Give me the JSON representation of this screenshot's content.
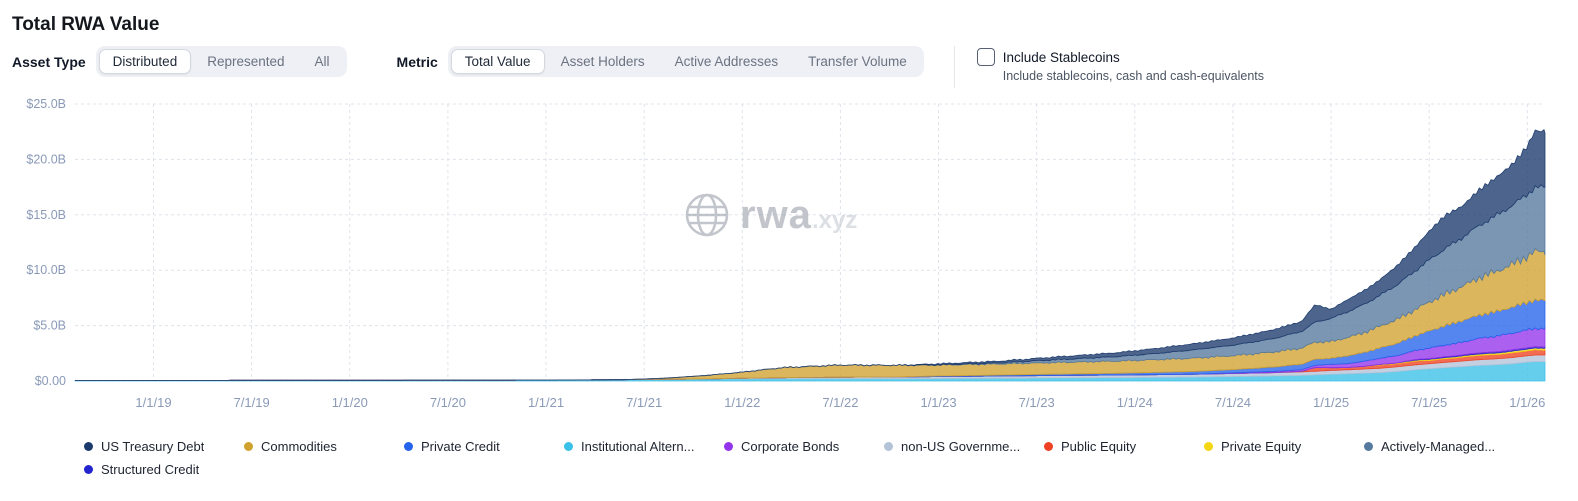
{
  "page": {
    "title": "Total RWA Value"
  },
  "controls": {
    "asset_type": {
      "label": "Asset Type",
      "options": [
        "Distributed",
        "Represented",
        "All"
      ],
      "selected": "Distributed"
    },
    "metric": {
      "label": "Metric",
      "options": [
        "Total Value",
        "Asset Holders",
        "Active Addresses",
        "Transfer Volume"
      ],
      "selected": "Total Value"
    },
    "stablecoins": {
      "label": "Include Stablecoins",
      "description": "Include stablecoins, cash and cash-equivalents",
      "checked": false
    }
  },
  "watermark": {
    "text": "rwa",
    "suffix": ".xyz"
  },
  "chart_data": {
    "type": "area",
    "stacked": true,
    "title": "Total RWA Value",
    "x_unit": "decimal_year",
    "x_range": [
      2018.6,
      2026.09
    ],
    "y_range": [
      0,
      25
    ],
    "grid": true,
    "legend_position": "bottom",
    "y_tick_values": [
      0,
      5,
      10,
      15,
      20,
      25
    ],
    "y_tick_labels": [
      "$0.00",
      "$5.0B",
      "$10.0B",
      "$15.0B",
      "$20.0B",
      "$25.0B"
    ],
    "x_tick_values": [
      2019.0,
      2019.5,
      2020.0,
      2020.5,
      2021.0,
      2021.5,
      2022.0,
      2022.5,
      2023.0,
      2023.5,
      2024.0,
      2024.5,
      2025.0,
      2025.5,
      2026.0
    ],
    "x_tick_labels": [
      "1/1/19",
      "7/1/19",
      "1/1/20",
      "7/1/20",
      "1/1/21",
      "7/1/21",
      "1/1/22",
      "7/1/22",
      "1/1/23",
      "7/1/23",
      "1/1/24",
      "7/1/24",
      "1/1/25",
      "7/1/25",
      "1/1/26"
    ],
    "x": [
      2018.7,
      2019.5,
      2020.5,
      2021.0,
      2021.4,
      2021.6,
      2021.8,
      2022.0,
      2022.2,
      2022.5,
      2022.8,
      2023.0,
      2023.3,
      2023.6,
      2023.9,
      2024.1,
      2024.3,
      2024.5,
      2024.7,
      2024.85,
      2024.92,
      2025.0,
      2025.08,
      2025.17,
      2025.25,
      2025.33,
      2025.42,
      2025.5,
      2025.58,
      2025.67,
      2025.75,
      2025.83,
      2025.92,
      2026.0,
      2026.04
    ],
    "stack_order": [
      3,
      5,
      6,
      7,
      9,
      4,
      2,
      1,
      8,
      0
    ],
    "series": [
      {
        "label": "US Treasury Debt",
        "color": "#1b3a6b",
        "noisy": true,
        "values": [
          0,
          0,
          0,
          0,
          0,
          0,
          0,
          0,
          0,
          0,
          0,
          0.1,
          0.15,
          0.25,
          0.35,
          0.45,
          0.55,
          0.65,
          0.8,
          0.9,
          1.6,
          0.8,
          1.1,
          1.25,
          1.4,
          1.7,
          2.1,
          2.6,
          3.0,
          2.85,
          3.2,
          3.4,
          3.7,
          4.3,
          5.1
        ]
      },
      {
        "label": "Commodities",
        "color": "#d1a12f",
        "noisy": true,
        "values": [
          0,
          0,
          0,
          0,
          0,
          0.1,
          0.3,
          0.55,
          0.9,
          1.1,
          1.05,
          1.0,
          1.0,
          1.05,
          1.1,
          1.15,
          1.2,
          1.25,
          1.35,
          1.45,
          1.55,
          1.5,
          1.65,
          1.8,
          1.95,
          2.15,
          2.35,
          2.6,
          2.85,
          3.1,
          3.35,
          3.6,
          3.85,
          4.15,
          4.4
        ]
      },
      {
        "label": "Private Credit",
        "color": "#2563eb",
        "noisy": true,
        "values": [
          0,
          0,
          0,
          0,
          0,
          0,
          0,
          0,
          0,
          0,
          0,
          0.05,
          0.08,
          0.12,
          0.15,
          0.2,
          0.25,
          0.3,
          0.4,
          0.5,
          0.55,
          0.55,
          0.7,
          0.8,
          0.95,
          1.1,
          1.3,
          1.55,
          1.75,
          1.95,
          2.1,
          2.2,
          2.35,
          2.5,
          2.55
        ]
      },
      {
        "label": "Institutional Altern...",
        "color": "#3bc0e8",
        "noisy": false,
        "values": [
          0.05,
          0.06,
          0.07,
          0.08,
          0.12,
          0.15,
          0.18,
          0.2,
          0.22,
          0.22,
          0.22,
          0.22,
          0.25,
          0.28,
          0.3,
          0.32,
          0.35,
          0.4,
          0.45,
          0.5,
          0.55,
          0.6,
          0.65,
          0.7,
          0.75,
          0.85,
          1.0,
          1.1,
          1.2,
          1.3,
          1.4,
          1.45,
          1.55,
          1.7,
          1.75
        ]
      },
      {
        "label": "Corporate Bonds",
        "color": "#9333ea",
        "noisy": true,
        "values": [
          0,
          0,
          0,
          0,
          0,
          0,
          0,
          0,
          0,
          0,
          0,
          0,
          0,
          0,
          0,
          0,
          0,
          0.05,
          0.1,
          0.15,
          0.2,
          0.3,
          0.35,
          0.45,
          0.55,
          0.65,
          0.8,
          0.95,
          1.05,
          1.15,
          1.3,
          1.4,
          1.5,
          1.6,
          1.65
        ]
      },
      {
        "label": "non-US Governme...",
        "color": "#b4c3d8",
        "noisy": false,
        "values": [
          0,
          0,
          0,
          0,
          0,
          0,
          0,
          0.05,
          0.08,
          0.12,
          0.15,
          0.18,
          0.2,
          0.22,
          0.24,
          0.25,
          0.26,
          0.28,
          0.3,
          0.32,
          0.33,
          0.35,
          0.36,
          0.38,
          0.4,
          0.42,
          0.44,
          0.46,
          0.48,
          0.5,
          0.52,
          0.54,
          0.56,
          0.58,
          0.6
        ]
      },
      {
        "label": "Public Equity",
        "color": "#ee4123",
        "noisy": true,
        "values": [
          0,
          0,
          0,
          0,
          0,
          0,
          0,
          0,
          0,
          0,
          0,
          0,
          0,
          0,
          0,
          0,
          0,
          0,
          0,
          0.05,
          0.35,
          0.25,
          0.2,
          0.25,
          0.3,
          0.28,
          0.35,
          0.3,
          0.32,
          0.35,
          0.4,
          0.38,
          0.42,
          0.45,
          0.45
        ]
      },
      {
        "label": "Private Equity",
        "color": "#f4d612",
        "noisy": false,
        "values": [
          0,
          0,
          0,
          0,
          0,
          0,
          0,
          0,
          0,
          0,
          0,
          0,
          0,
          0,
          0,
          0,
          0,
          0,
          0,
          0,
          0,
          0,
          0,
          0,
          0.05,
          0.06,
          0.08,
          0.1,
          0.1,
          0.12,
          0.12,
          0.14,
          0.15,
          0.16,
          0.16
        ]
      },
      {
        "label": "Actively-Managed...",
        "color": "#56799e",
        "noisy": true,
        "values": [
          0,
          0,
          0,
          0,
          0,
          0,
          0,
          0,
          0,
          0,
          0,
          0,
          0.1,
          0.25,
          0.4,
          0.55,
          0.75,
          0.95,
          1.2,
          1.5,
          1.8,
          2.1,
          2.3,
          2.55,
          2.8,
          3.1,
          3.45,
          3.8,
          4.1,
          4.4,
          4.7,
          5.0,
          5.3,
          5.6,
          5.8
        ]
      },
      {
        "label": "Structured Credit",
        "color": "#2424cf",
        "noisy": false,
        "values": [
          0,
          0,
          0,
          0,
          0,
          0,
          0,
          0,
          0,
          0,
          0,
          0,
          0,
          0,
          0,
          0,
          0,
          0,
          0,
          0,
          0,
          0,
          0,
          0,
          0,
          0,
          0.05,
          0.06,
          0.08,
          0.08,
          0.1,
          0.1,
          0.12,
          0.12,
          0.12
        ]
      }
    ]
  }
}
